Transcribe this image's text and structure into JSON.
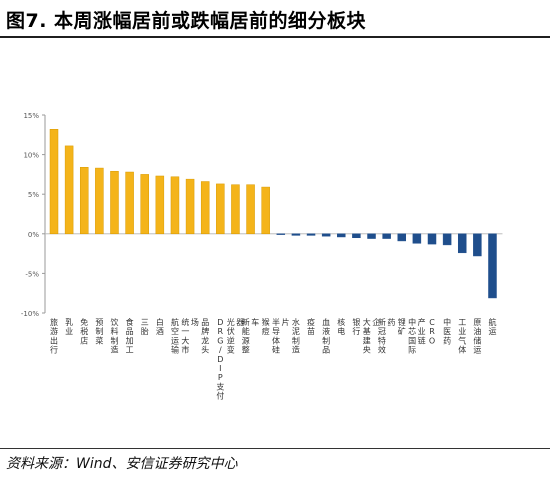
{
  "header": {
    "title": "图7. 本周涨幅居前或跌幅居前的细分板块"
  },
  "footer": {
    "source": "资料来源：Wind、安信证券研究中心"
  },
  "colors": {
    "positive": "#F4B41A",
    "positive_stroke": "#D99A00",
    "negative": "#1F4E8C",
    "axis": "#9a9a9a"
  },
  "chart_data": {
    "type": "bar",
    "title": "图7. 本周涨幅居前或跌幅居前的细分板块",
    "xlabel": "",
    "ylabel": "",
    "ylim": [
      -10,
      15
    ],
    "yticks": [
      15,
      10,
      5,
      0,
      -5,
      -10
    ],
    "ytick_labels": [
      "15%",
      "10%",
      "5%",
      "0%",
      "-5%",
      "-10%"
    ],
    "grid": false,
    "categories": [
      "旅游出行",
      "乳业",
      "免税店",
      "预制菜",
      "饮料制造",
      "食品加工",
      "三胎",
      "白酒",
      "航空运输",
      "统一大市场",
      "品牌龙头",
      "DRG/DIP支付",
      "光伏逆变器",
      "新能源整车",
      "猴痘",
      "半导体硅片",
      "水泥制造",
      "疫苗",
      "血液制品",
      "核电",
      "银行",
      "大基建央企",
      "新冠特效药",
      "锂矿",
      "中芯国际产业链",
      "CRO",
      "中医药",
      "工业气体",
      "原油储运",
      "航运"
    ],
    "values": [
      13.2,
      11.1,
      8.4,
      8.3,
      7.9,
      7.8,
      7.5,
      7.3,
      7.2,
      6.9,
      6.6,
      6.3,
      6.2,
      6.2,
      5.9,
      -0.1,
      -0.2,
      -0.2,
      -0.3,
      -0.4,
      -0.5,
      -0.6,
      -0.6,
      -0.9,
      -1.2,
      -1.3,
      -1.4,
      -2.4,
      -2.8,
      -8.1
    ]
  }
}
